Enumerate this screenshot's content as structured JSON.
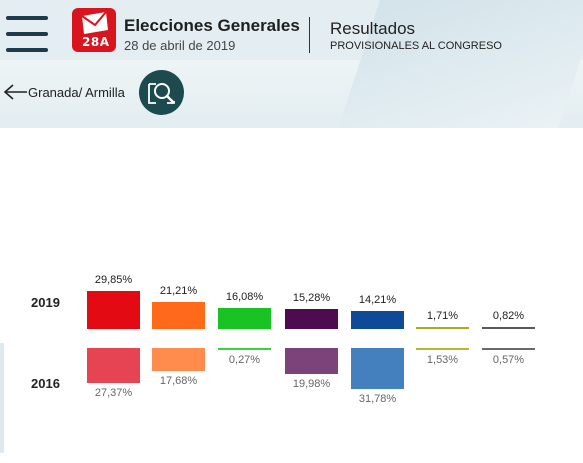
{
  "header": {
    "logo_text": "28A",
    "title": "Elecciones Generales",
    "date": "28 de abril de 2019",
    "results_title": "Resultados",
    "results_subtitle": "PROVISIONALES AL CONGRESO"
  },
  "nav": {
    "back_label": "Granada/ Armilla",
    "menu_icon": "hamburger-menu-icon",
    "search_icon": "search-location-icon"
  },
  "results": {
    "years": [
      "2019",
      "2016"
    ],
    "parties": [
      {
        "color_2019": "#e30a13",
        "color_2016": "#e64452",
        "v2019": "29,85%",
        "v2016": "27,37%",
        "p2019": 29.85,
        "p2016": 27.37
      },
      {
        "color_2019": "#ff6a1a",
        "color_2016": "#ff8c4d",
        "v2019": "21,21%",
        "v2016": "17,68%",
        "p2019": 21.21,
        "p2016": 17.68
      },
      {
        "color_2019": "#19c323",
        "color_2016": "#3ecf45",
        "v2019": "16,08%",
        "v2016": "0,27%",
        "p2019": 16.08,
        "p2016": 0.27
      },
      {
        "color_2019": "#4c0c4f",
        "color_2016": "#7b4379",
        "v2019": "15,28%",
        "v2016": "19,98%",
        "p2019": 15.28,
        "p2016": 19.98
      },
      {
        "color_2019": "#0f4a99",
        "color_2016": "#4480bd",
        "v2019": "14,21%",
        "v2016": "31,78%",
        "p2019": 14.21,
        "p2016": 31.78
      },
      {
        "color_2019": "#aeaa1f",
        "color_2016": "#b8b438",
        "v2019": "1,71%",
        "v2016": "1,53%",
        "p2019": 1.71,
        "p2016": 1.53
      },
      {
        "color_2019": "#5a5a5a",
        "color_2016": "#6a6a6a",
        "v2019": "0,82%",
        "v2016": "0,57%",
        "p2019": 0.82,
        "p2016": 0.57
      }
    ]
  }
}
